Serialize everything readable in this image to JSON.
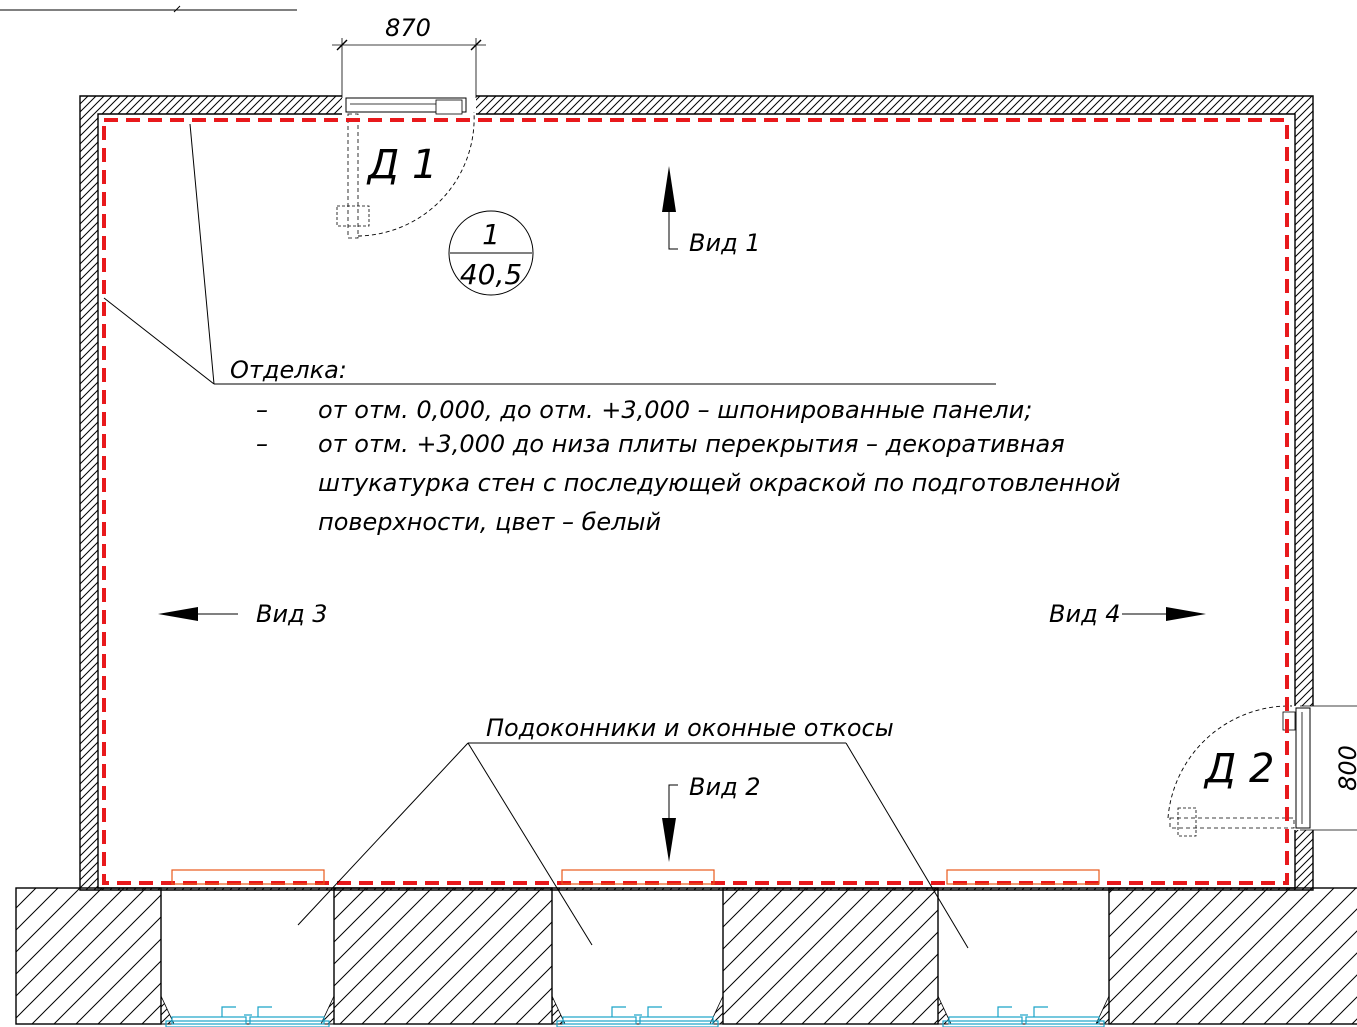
{
  "door_d1": {
    "dimension": "870",
    "tag": "Д 1"
  },
  "door_d2": {
    "dimension": "800",
    "tag": "Д 2"
  },
  "room_marker": {
    "number": "1",
    "area": "40,5"
  },
  "views": {
    "view1": "Вид 1",
    "view2": "Вид 2",
    "view3": "Вид 3",
    "view4": "Вид 4"
  },
  "finish_note": {
    "title": "Отделка:",
    "items": [
      {
        "bullet": "–",
        "lines": [
          "от отм. 0,000, до отм. +3,000 – шпонированные панели;"
        ]
      },
      {
        "bullet": "–",
        "lines": [
          "от отм. +3,000 до низа плиты перекрытия – декоративная",
          "штукатурка стен с последующей окраской по подготовленной",
          "поверхности, цвет – белый"
        ]
      }
    ]
  },
  "sill_label": "Подоконники и оконные откосы",
  "colors": {
    "wall_line": "#000000",
    "finish_outline": "#e8191c",
    "sill": "#e8591c",
    "window": "#1aa3c8"
  }
}
